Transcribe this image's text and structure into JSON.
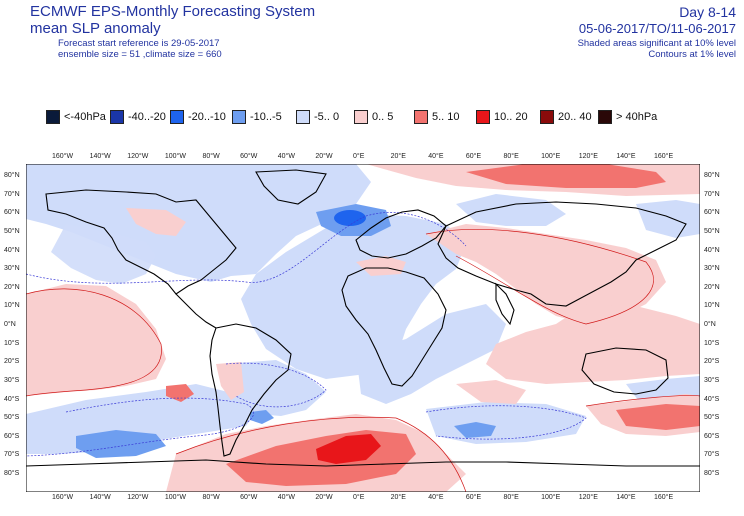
{
  "header": {
    "title_line1": "ECMWF EPS-Monthly Forecasting System",
    "title_line2": "mean SLP anomaly",
    "forecast_ref": "Forecast start reference is 29-05-2017",
    "ensemble": "ensemble size = 51  ,climate size = 660",
    "period": "Day 8-14",
    "dates": "05-06-2017/TO/11-06-2017",
    "shaded_note": "Shaded areas significant at 10% level",
    "contours_note": "Contours at 1% level"
  },
  "legend": [
    {
      "label": "<-40hPa",
      "color": "#0a1a3a"
    },
    {
      "label": "-40..-20",
      "color": "#1a36a8"
    },
    {
      "label": "-20..-10",
      "color": "#1e64ee"
    },
    {
      "label": "-10..-5",
      "color": "#6e9ef0"
    },
    {
      "label": "-5..  0",
      "color": "#cfdcfa"
    },
    {
      "label": "0..  5",
      "color": "#f9cfcf"
    },
    {
      "label": "5..  10",
      "color": "#f2736f"
    },
    {
      "label": "10..  20",
      "color": "#e8161a"
    },
    {
      "label": "20..  40",
      "color": "#8a0b0b"
    },
    {
      "label": ">  40hPa",
      "color": "#2a0808"
    }
  ],
  "lon_ticks": [
    "160°W",
    "140°W",
    "120°W",
    "100°W",
    "80°W",
    "60°W",
    "40°W",
    "20°W",
    "0°E",
    "20°E",
    "40°E",
    "60°E",
    "80°E",
    "100°E",
    "120°E",
    "140°E",
    "160°E"
  ],
  "lat_ticks_left": [
    "80°N",
    "70°N",
    "60°N",
    "50°N",
    "40°N",
    "30°N",
    "20°N",
    "10°N",
    "0°N",
    "10°S",
    "20°S",
    "30°S",
    "40°S",
    "50°S",
    "60°S",
    "70°S",
    "80°S"
  ],
  "lat_ticks_right": [
    "80°N",
    "70°N",
    "60°N",
    "50°N",
    "40°N",
    "30°N",
    "20°N",
    "10°N",
    "0°N",
    "10°S",
    "20°S",
    "30°S",
    "40°S",
    "50°S",
    "60°S",
    "70°S",
    "80°S"
  ]
}
